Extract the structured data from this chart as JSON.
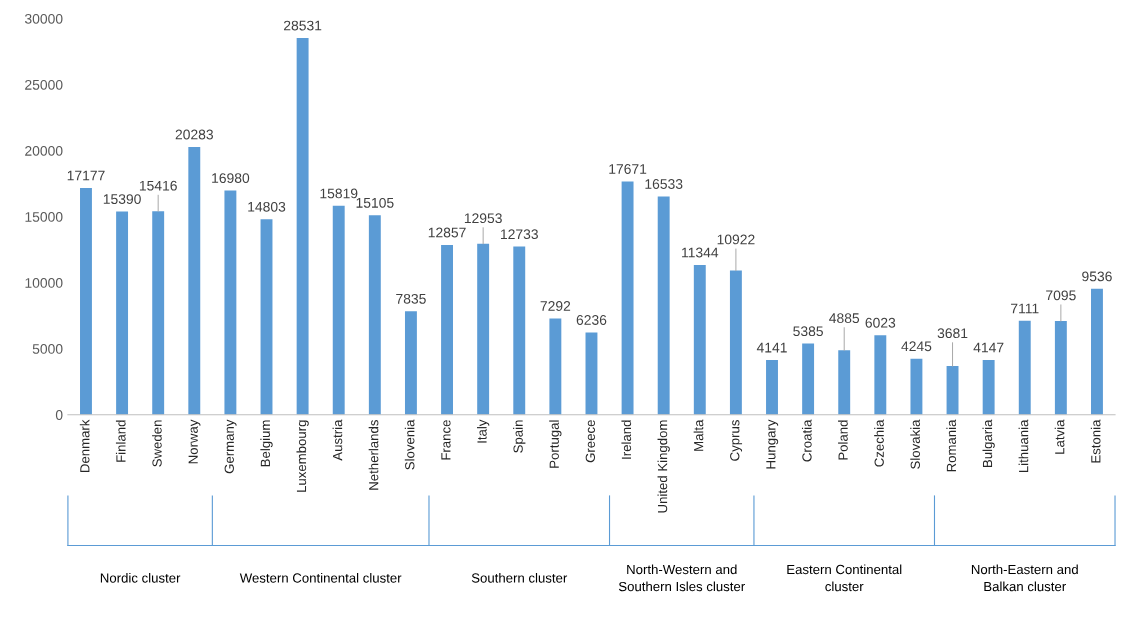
{
  "chart_data": {
    "type": "bar",
    "categories": [
      "Denmark",
      "Finland",
      "Sweden",
      "Norway",
      "Germany",
      "Belgium",
      "Luxembourg",
      "Austria",
      "Netherlands",
      "Slovenia",
      "France",
      "Italy",
      "Spain",
      "Portugal",
      "Greece",
      "Ireland",
      "United Kingdom",
      "Malta",
      "Cyprus",
      "Hungary",
      "Croatia",
      "Poland",
      "Czechia",
      "Slovakia",
      "Romania",
      "Bulgaria",
      "Lithuania",
      "Latvia",
      "Estonia"
    ],
    "values": [
      17177,
      15390,
      15416,
      20283,
      16980,
      14803,
      28531,
      15819,
      15105,
      7835,
      12857,
      12953,
      12733,
      7292,
      6236,
      17671,
      16533,
      11344,
      10922,
      4141,
      5385,
      4885,
      6023,
      4245,
      3681,
      4147,
      7111,
      7095,
      9536
    ],
    "color": "#5b9bd5",
    "ylim": [
      0,
      30000
    ],
    "yticks": [
      0,
      5000,
      10000,
      15000,
      20000,
      25000,
      30000
    ],
    "data_labels": true,
    "grid": false,
    "annotations": [
      "Nordic cluster",
      "Western Continental cluster",
      "Southern cluster",
      "North-Western and\nSouthern Isles cluster",
      "Eastern Continental\ncluster",
      "North-Eastern and\nBalkan cluster"
    ]
  }
}
